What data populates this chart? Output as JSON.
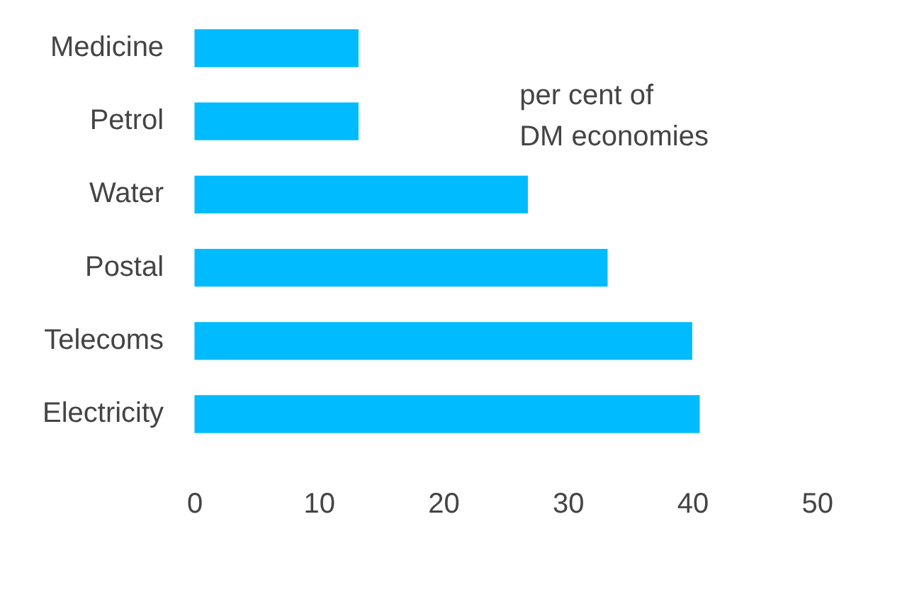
{
  "chart_data": {
    "type": "bar",
    "orientation": "horizontal",
    "categories": [
      "Medicine",
      "Petrol",
      "Water",
      "Postal",
      "Telecoms",
      "Electricity"
    ],
    "values": [
      13.1,
      13.1,
      26.7,
      33.1,
      39.9,
      40.5
    ],
    "color": "#00bbff",
    "xlim": [
      0,
      50
    ],
    "xticks": [
      0,
      10,
      20,
      30,
      40,
      50
    ],
    "grid": false,
    "legend": false,
    "annotations": [
      "per cent of\nDM economies"
    ]
  }
}
